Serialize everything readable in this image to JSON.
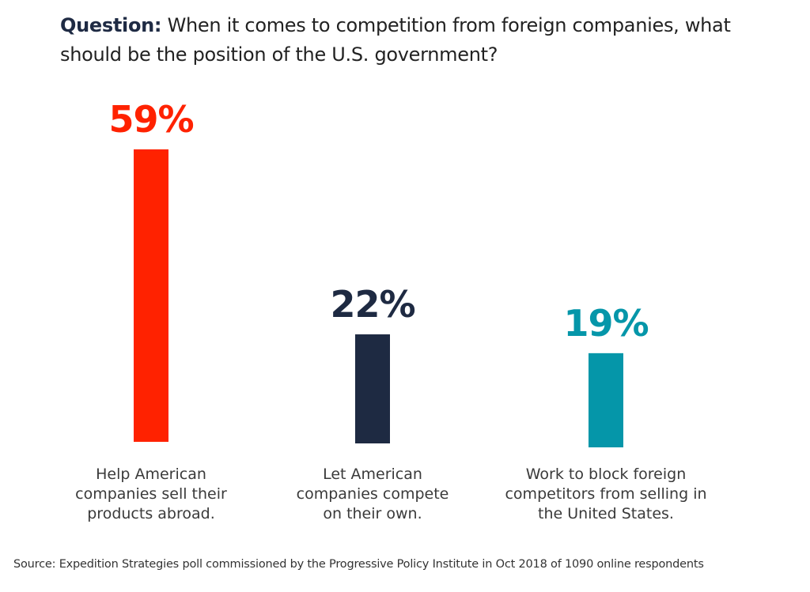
{
  "question": {
    "label": "Question:",
    "text": "When it comes to competition from foreign companies, what should be the position of the U.S. government?"
  },
  "chart_data": {
    "type": "bar",
    "title": "When it comes to competition from foreign companies, what should be the position of the U.S. government?",
    "xlabel": "",
    "ylabel": "",
    "grid": false,
    "unit": "%",
    "categories": [
      [
        "Help American",
        "companies sell their",
        "products abroad."
      ],
      [
        "Let American",
        "companies compete",
        "on their own."
      ],
      [
        "Work to block foreign",
        "competitors from selling in",
        "the United States."
      ]
    ],
    "values": [
      59,
      22,
      19
    ],
    "value_labels": [
      "59%",
      "22%",
      "19%"
    ],
    "colors": [
      "#ff2200",
      "#1e2a42",
      "#0596a9"
    ]
  },
  "source": "Source: Expedition Strategies poll commissioned by the Progressive Policy Institute in Oct 2018 of 1090 online respondents"
}
